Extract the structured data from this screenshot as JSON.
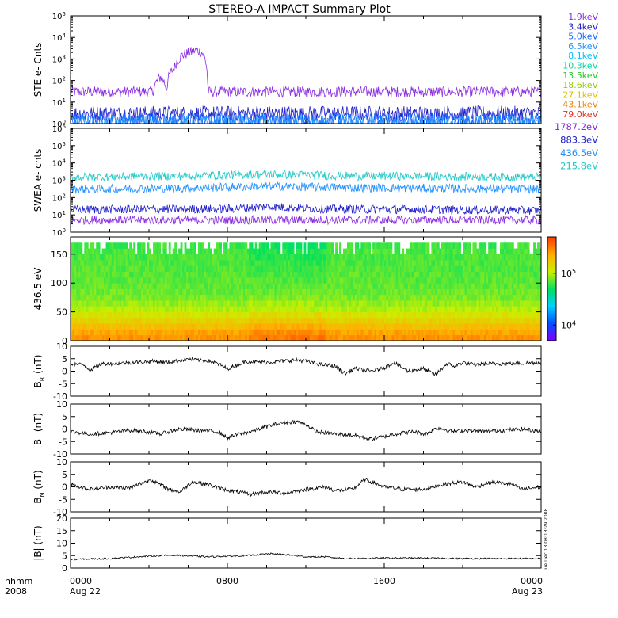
{
  "title": "STEREO-A IMPACT Summary Plot",
  "side_stamp": "Tue Dec 13 08:13:29 2008",
  "x_axis": {
    "corner_labels": [
      "hhmm",
      "2008"
    ],
    "ticks": [
      {
        "hour": 0,
        "time": "0000",
        "date": "Aug 22"
      },
      {
        "hour": 8,
        "time": "0800",
        "date": ""
      },
      {
        "hour": 16,
        "time": "1600",
        "date": ""
      },
      {
        "hour": 24,
        "time": "0000",
        "date": "Aug 23"
      }
    ],
    "range_hours": [
      0,
      24
    ]
  },
  "chart_data": [
    {
      "type": "line",
      "id": "ste",
      "ylabel": "STE e- Cnts",
      "yscale": "log",
      "ylim": [
        1,
        100000
      ],
      "ytick_labels": [
        "10^0",
        "10^1",
        "10^2",
        "10^3",
        "10^4",
        "10^5"
      ],
      "legend_placement": "right",
      "series": [
        {
          "name": "1.9keV",
          "color": "#8a2be2",
          "x": [
            0,
            4.2,
            4.6,
            4.9,
            5.3,
            5.7,
            6.1,
            6.4,
            6.7,
            7.0,
            7.1,
            24
          ],
          "y": [
            30,
            30,
            150,
            40,
            400,
            1500,
            2000,
            2500,
            2000,
            30,
            30,
            30
          ]
        },
        {
          "name": "3.4keV",
          "color": "#2020c8",
          "x": [
            0,
            24
          ],
          "y": [
            3,
            3
          ]
        },
        {
          "name": "5.0keV",
          "color": "#1565ff",
          "x": [
            0,
            24
          ],
          "y": [
            1.5,
            1.5
          ]
        },
        {
          "name": "6.5keV",
          "color": "#1e90ff",
          "x": [
            0,
            24
          ],
          "y": [
            1.1,
            1.1
          ]
        },
        {
          "name": "8.1keV",
          "color": "#00bfff",
          "x": [],
          "y": []
        },
        {
          "name": "10.3keV",
          "color": "#00d8a0",
          "x": [],
          "y": []
        },
        {
          "name": "13.5keV",
          "color": "#22cc22",
          "x": [],
          "y": []
        },
        {
          "name": "18.6keV",
          "color": "#90d000",
          "x": [],
          "y": []
        },
        {
          "name": "27.1keV",
          "color": "#e0c000",
          "x": [],
          "y": []
        },
        {
          "name": "43.1keV",
          "color": "#f08000",
          "x": [],
          "y": []
        },
        {
          "name": "79.0keV",
          "color": "#e03020",
          "x": [],
          "y": []
        }
      ]
    },
    {
      "type": "line",
      "id": "swea",
      "ylabel": "SWEA e- cnts",
      "yscale": "log",
      "ylim": [
        1,
        1000000
      ],
      "ytick_labels": [
        "10^0",
        "10^1",
        "10^2",
        "10^3",
        "10^4",
        "10^5",
        "10^6"
      ],
      "legend_placement": "right",
      "series": [
        {
          "name": "1787.2eV",
          "color": "#8a2be2",
          "x": [
            0,
            24
          ],
          "y": [
            5,
            5
          ]
        },
        {
          "name": "883.3eV",
          "color": "#2020c8",
          "x": [
            0,
            8,
            10,
            13,
            24
          ],
          "y": [
            20,
            22,
            30,
            22,
            18
          ]
        },
        {
          "name": "436.5eV",
          "color": "#1e90ff",
          "x": [
            0,
            6,
            10,
            14,
            24
          ],
          "y": [
            300,
            350,
            450,
            380,
            300
          ]
        },
        {
          "name": "215.8eV",
          "color": "#20c8c8",
          "x": [
            0,
            6,
            10,
            14,
            24
          ],
          "y": [
            1500,
            1800,
            2200,
            1800,
            1500
          ]
        }
      ]
    },
    {
      "type": "heatmap",
      "id": "pad",
      "ylabel": "436.5 eV",
      "ylim": [
        0,
        180
      ],
      "yticks": [
        0,
        50,
        100,
        150
      ],
      "color_scale": "log",
      "colorbar_ticks": [
        "10^4",
        "10^5"
      ],
      "colorbar_range": [
        5000,
        500000
      ],
      "colormap": [
        "#7a00ff",
        "#0050ff",
        "#00d0ff",
        "#00e060",
        "#c8f000",
        "#ffb000",
        "#ff4000"
      ],
      "angle_bins": [
        5,
        15,
        25,
        35,
        45,
        55,
        65,
        75,
        85,
        95,
        105,
        115,
        125,
        135,
        145,
        155,
        165
      ],
      "profile_log10_counts": [
        5.45,
        5.4,
        5.3,
        5.2,
        5.1,
        5.0,
        4.95,
        4.9,
        4.88,
        4.86,
        4.85,
        4.84,
        4.83,
        4.83,
        4.82,
        4.82,
        4.8
      ]
    },
    {
      "type": "line",
      "id": "br",
      "ylabel": "B_R (nT)",
      "ylabel_main": "B",
      "ylabel_sub": "R",
      "ylabel_unit": "(nT)",
      "ylim": [
        -10,
        10
      ],
      "yticks": [
        -10,
        -5,
        0,
        5,
        10
      ],
      "series": [
        {
          "name": "",
          "color": "#000000",
          "x": [
            0,
            0.7,
            1.0,
            1.6,
            2.2,
            3.2,
            4.3,
            5.0,
            6.0,
            7.0,
            7.5,
            8.0,
            9.0,
            10.0,
            11.5,
            12.0,
            12.5,
            13.5,
            14.0,
            14.5,
            15.3,
            15.9,
            16.5,
            17.2,
            18.0,
            18.6,
            19.2,
            19.6,
            20.0,
            20.6,
            21.2,
            22.0,
            23.0,
            24.0
          ],
          "y": [
            3,
            2.5,
            0.5,
            3,
            3,
            3.5,
            4,
            3.5,
            4.8,
            4.2,
            3,
            1,
            4,
            3.5,
            4.5,
            4,
            3,
            2,
            -1,
            1,
            0,
            1,
            3.5,
            0,
            1,
            -1.5,
            3,
            2,
            3.5,
            2.5,
            3,
            3,
            3.2,
            3.5
          ]
        }
      ]
    },
    {
      "type": "line",
      "id": "bt",
      "ylabel": "B_T (nT)",
      "ylabel_main": "B",
      "ylabel_sub": "T",
      "ylabel_unit": "(nT)",
      "ylim": [
        -10,
        10
      ],
      "yticks": [
        -10,
        -5,
        0,
        5,
        10
      ],
      "series": [
        {
          "name": "",
          "color": "#000000",
          "x": [
            0,
            1.0,
            2.0,
            3.0,
            3.8,
            4.6,
            5.5,
            6.5,
            7.5,
            8.0,
            8.6,
            9.2,
            10.0,
            10.8,
            11.5,
            12.0,
            12.5,
            13.5,
            14.5,
            15.3,
            16.0,
            16.5,
            17.5,
            18.1,
            18.7,
            19.5,
            20.3,
            21.2,
            22.0,
            23.0,
            24.0
          ],
          "y": [
            -1,
            -2,
            -1.5,
            -0.5,
            -1,
            -2,
            0,
            -0.5,
            -1,
            -3.5,
            -2,
            -1,
            1,
            2.5,
            3,
            2,
            -1,
            -2,
            -2.5,
            -4,
            -3,
            -2,
            -1,
            -2,
            0.5,
            -1,
            -0.5,
            -1,
            -0.5,
            0,
            -1
          ]
        }
      ]
    },
    {
      "type": "line",
      "id": "bn",
      "ylabel": "B_N (nT)",
      "ylabel_main": "B",
      "ylabel_sub": "N",
      "ylabel_unit": "(nT)",
      "ylim": [
        -10,
        10
      ],
      "yticks": [
        -10,
        -5,
        0,
        5,
        10
      ],
      "series": [
        {
          "name": "",
          "color": "#000000",
          "x": [
            0,
            1.0,
            2.0,
            3.0,
            4.1,
            5.0,
            5.6,
            6.2,
            7.0,
            7.8,
            8.5,
            9.2,
            10.0,
            11.0,
            12.0,
            13.0,
            13.5,
            14.4,
            15.0,
            16.0,
            17.0,
            18.0,
            19.0,
            20.0,
            20.7,
            21.5,
            22.5,
            23.0,
            24.0
          ],
          "y": [
            1,
            -1,
            0,
            -0.5,
            3,
            -1,
            -2,
            2,
            1,
            -1,
            -2,
            -3,
            -2,
            -2.5,
            -1,
            0,
            -1.5,
            -1,
            3,
            0,
            -1,
            -1,
            1,
            2,
            0,
            2,
            1,
            -1,
            0
          ]
        }
      ]
    },
    {
      "type": "line",
      "id": "bmag",
      "ylabel": "|B| (nT)",
      "ylim": [
        0,
        20
      ],
      "yticks": [
        0,
        5,
        10,
        15,
        20
      ],
      "series": [
        {
          "name": "",
          "color": "#000000",
          "x": [
            0,
            2,
            4,
            5.2,
            7,
            9,
            10.2,
            11.2,
            12,
            13,
            14,
            16,
            18,
            20,
            22,
            24
          ],
          "y": [
            3.5,
            3.8,
            4.8,
            5.2,
            4.5,
            5.0,
            5.8,
            5.2,
            4.5,
            4.5,
            3.8,
            4.0,
            4.0,
            3.8,
            3.8,
            3.8
          ]
        }
      ]
    }
  ]
}
